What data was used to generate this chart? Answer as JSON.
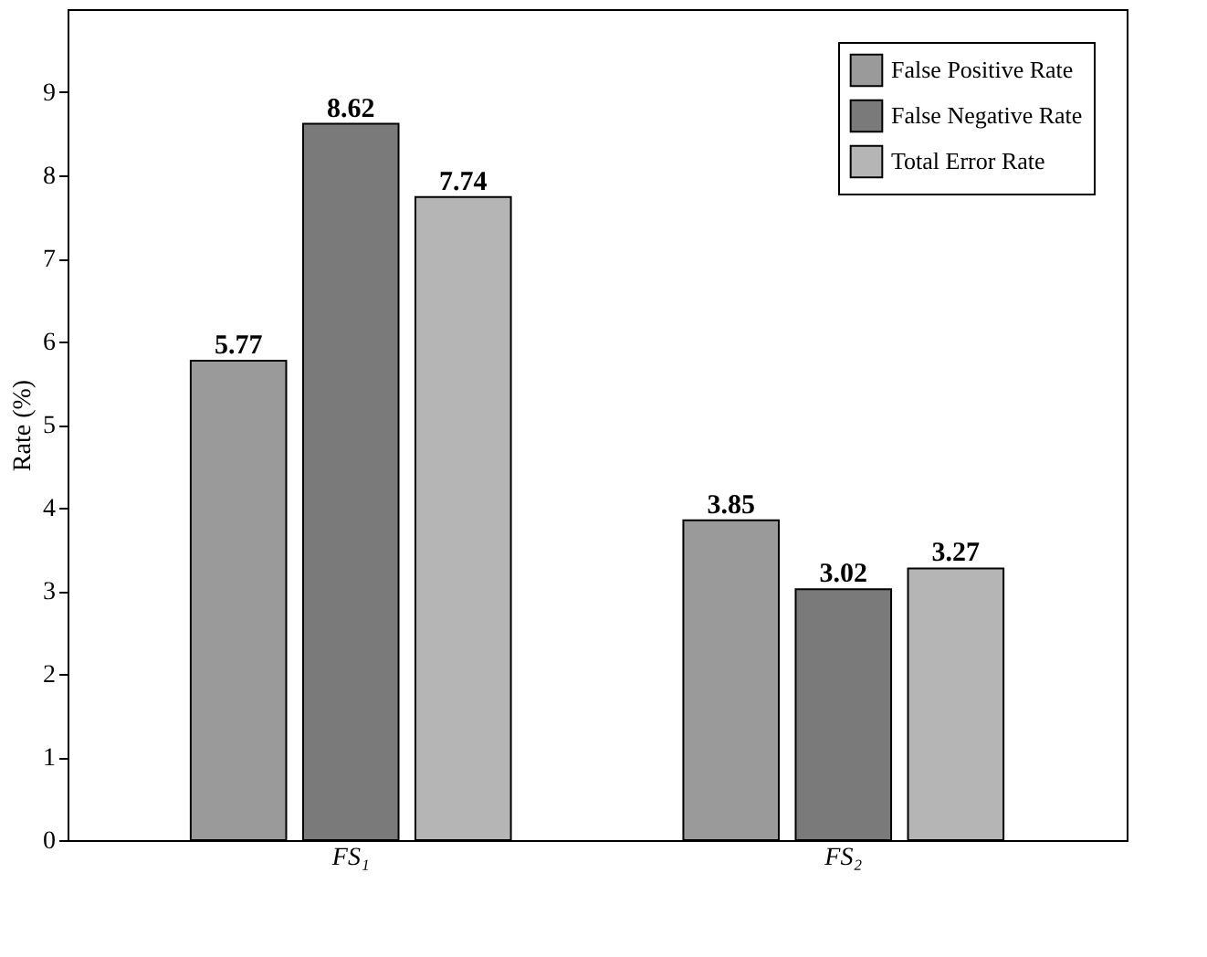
{
  "chart_data": {
    "type": "bar",
    "ylabel": "Rate (%)",
    "categories": [
      "FS₁",
      "FS₂"
    ],
    "series": [
      {
        "name": "False Positive Rate",
        "color": "#9a9a9a",
        "values": [
          5.77,
          3.85
        ]
      },
      {
        "name": "False Negative Rate",
        "color": "#7a7a7a",
        "values": [
          8.62,
          3.02
        ]
      },
      {
        "name": "Total Error Rate",
        "color": "#b5b5b5",
        "values": [
          7.74,
          3.27
        ]
      }
    ],
    "ylim": [
      0,
      10
    ],
    "yticks": [
      0,
      1,
      2,
      3,
      4,
      5,
      6,
      7,
      8,
      9
    ],
    "data_labels": true,
    "legend": "top right",
    "grid": false
  }
}
